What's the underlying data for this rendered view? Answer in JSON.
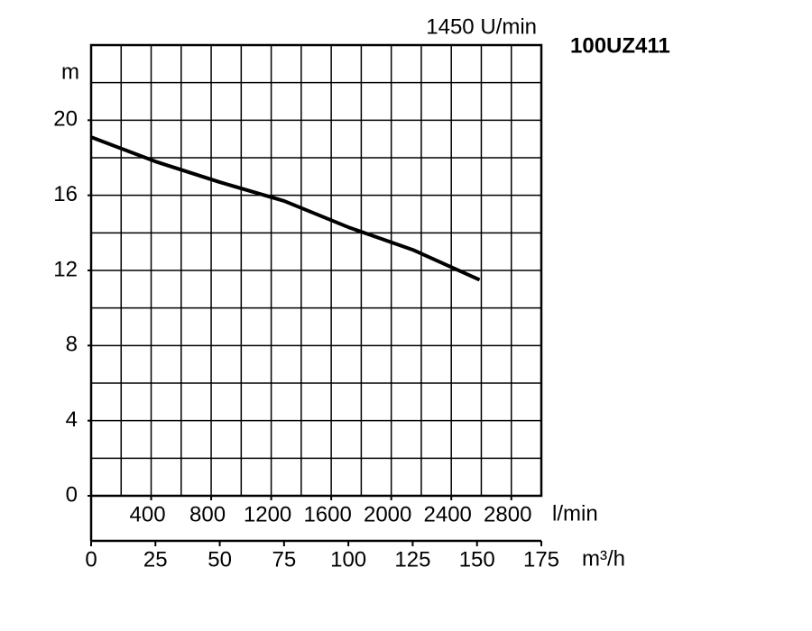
{
  "chart_data": {
    "type": "line",
    "title": "100UZ411",
    "subtitle": "1450 U/min",
    "y_label": "m",
    "x_label": "m³/h",
    "x2_label": "l/min",
    "x": [
      0,
      25,
      50,
      75,
      100,
      125,
      151
    ],
    "series": [
      {
        "name": "100UZ411",
        "color": "#000000",
        "values": [
          19.1,
          17.8,
          16.7,
          15.7,
          14.3,
          13.1,
          11.5
        ]
      }
    ],
    "xlim": [
      0,
      175
    ],
    "xticks": [
      0,
      25,
      50,
      75,
      100,
      125,
      150,
      175
    ],
    "x2lim": [
      0,
      3000
    ],
    "x2ticks": [
      400,
      800,
      1200,
      1600,
      2000,
      2400,
      2800
    ],
    "x2grid": [
      200,
      400,
      600,
      800,
      1000,
      1200,
      1400,
      1600,
      1800,
      2000,
      2200,
      2400,
      2600,
      2800
    ],
    "ylim": [
      0,
      24
    ],
    "yticks": [
      0,
      4,
      8,
      12,
      16,
      20
    ],
    "ygrid": [
      2,
      4,
      6,
      8,
      10,
      12,
      14,
      16,
      18,
      20,
      22
    ],
    "grid": true
  }
}
